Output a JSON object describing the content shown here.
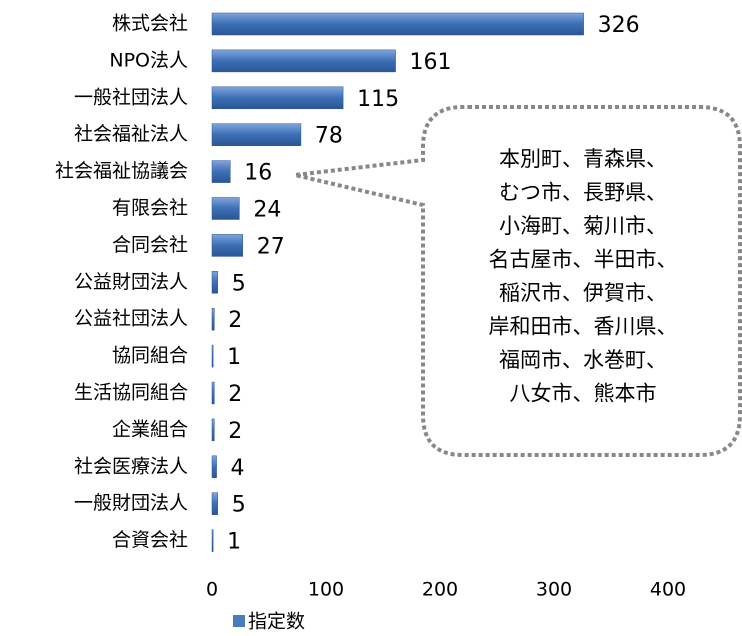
{
  "chart_data": {
    "type": "bar",
    "orientation": "horizontal",
    "categories": [
      "株式会社",
      "NPO法人",
      "一般社団法人",
      "社会福祉法人",
      "社会福祉協議会",
      "有限会社",
      "合同会社",
      "公益財団法人",
      "公益社団法人",
      "協同組合",
      "生活協同組合",
      "企業組合",
      "社会医療法人",
      "一般財団法人",
      "合資会社"
    ],
    "series": [
      {
        "name": "指定数",
        "color": "#4a7ebb",
        "values": [
          326,
          161,
          115,
          78,
          16,
          24,
          27,
          5,
          2,
          1,
          2,
          2,
          4,
          5,
          1
        ]
      }
    ],
    "xlim": [
      0,
      450
    ],
    "xticks": [
      0,
      100,
      200,
      300,
      400
    ],
    "grid": false,
    "legend": "bottom",
    "annotation": [
      "本別町、青森県、",
      "むつ市、長野県、",
      "小海町、菊川市、",
      "名古屋市、半田市、",
      "稲沢市、伊賀市、",
      "岸和田市、香川県、",
      "福岡市、水巻町、",
      "八女市、熊本市"
    ]
  }
}
